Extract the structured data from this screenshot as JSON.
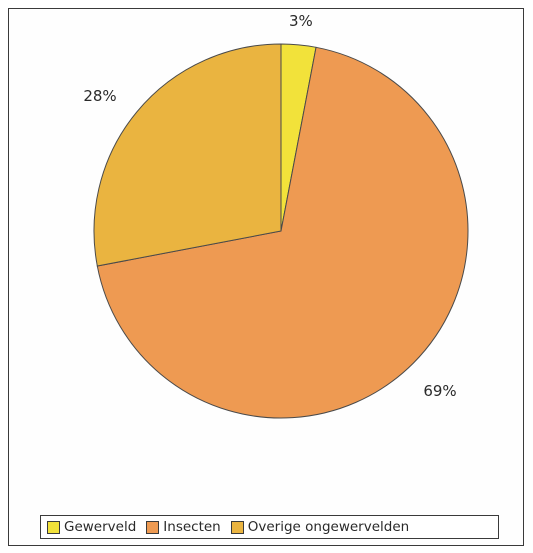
{
  "chart_data": {
    "type": "pie",
    "categories": [
      "Gewerveld",
      "Insecten",
      "Overige ongewervelden"
    ],
    "values": [
      3,
      69,
      28
    ],
    "data_labels": [
      "3%",
      "69%",
      "28%"
    ],
    "colors": [
      "#f2e23a",
      "#ee9a52",
      "#eab440"
    ],
    "title": "",
    "legend_position": "bottom",
    "start_angle": "top, clockwise"
  }
}
